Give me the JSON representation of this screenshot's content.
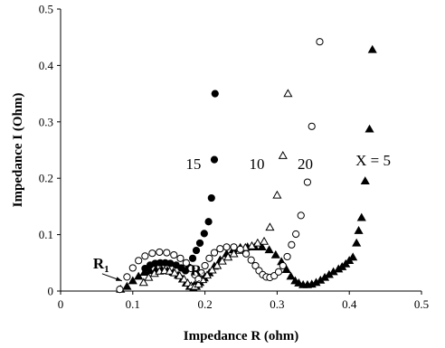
{
  "chart_data": {
    "type": "scatter",
    "xlabel": "Impedance R (ohm)",
    "ylabel": "Impedance I (Ohm)",
    "xlim": [
      0,
      0.5
    ],
    "ylim": [
      0,
      0.5
    ],
    "xticks": [
      "0",
      "0.1",
      "0.2",
      "0.3",
      "0.4",
      "0.5"
    ],
    "yticks": [
      "0",
      "0.1",
      "0.2",
      "0.3",
      "0.4",
      "0.5"
    ],
    "grid": false,
    "legend": "none",
    "series": [
      {
        "name": "5",
        "marker": "filled-triangle",
        "points": [
          [
            0.083,
            0.003
          ],
          [
            0.092,
            0.008
          ],
          [
            0.1,
            0.018
          ],
          [
            0.108,
            0.026
          ],
          [
            0.116,
            0.033
          ],
          [
            0.124,
            0.036
          ],
          [
            0.132,
            0.038
          ],
          [
            0.14,
            0.038
          ],
          [
            0.148,
            0.036
          ],
          [
            0.156,
            0.033
          ],
          [
            0.163,
            0.028
          ],
          [
            0.169,
            0.021
          ],
          [
            0.174,
            0.014
          ],
          [
            0.179,
            0.008
          ],
          [
            0.184,
            0.005
          ],
          [
            0.188,
            0.008
          ],
          [
            0.193,
            0.015
          ],
          [
            0.199,
            0.023
          ],
          [
            0.206,
            0.032
          ],
          [
            0.213,
            0.044
          ],
          [
            0.221,
            0.055
          ],
          [
            0.23,
            0.066
          ],
          [
            0.239,
            0.073
          ],
          [
            0.249,
            0.077
          ],
          [
            0.259,
            0.078
          ],
          [
            0.269,
            0.078
          ],
          [
            0.279,
            0.078
          ],
          [
            0.289,
            0.073
          ],
          [
            0.298,
            0.064
          ],
          [
            0.306,
            0.052
          ],
          [
            0.313,
            0.038
          ],
          [
            0.319,
            0.026
          ],
          [
            0.325,
            0.018
          ],
          [
            0.33,
            0.014
          ],
          [
            0.336,
            0.011
          ],
          [
            0.342,
            0.011
          ],
          [
            0.348,
            0.012
          ],
          [
            0.354,
            0.015
          ],
          [
            0.36,
            0.019
          ],
          [
            0.366,
            0.024
          ],
          [
            0.372,
            0.029
          ],
          [
            0.378,
            0.034
          ],
          [
            0.385,
            0.039
          ],
          [
            0.39,
            0.043
          ],
          [
            0.395,
            0.048
          ],
          [
            0.4,
            0.054
          ],
          [
            0.405,
            0.06
          ],
          [
            0.41,
            0.085
          ],
          [
            0.413,
            0.107
          ],
          [
            0.417,
            0.13
          ],
          [
            0.422,
            0.195
          ],
          [
            0.428,
            0.287
          ],
          [
            0.432,
            0.428
          ]
        ]
      },
      {
        "name": "10",
        "marker": "open-triangle",
        "points": [
          [
            0.115,
            0.015
          ],
          [
            0.122,
            0.024
          ],
          [
            0.13,
            0.031
          ],
          [
            0.137,
            0.035
          ],
          [
            0.144,
            0.036
          ],
          [
            0.151,
            0.035
          ],
          [
            0.158,
            0.032
          ],
          [
            0.165,
            0.027
          ],
          [
            0.171,
            0.021
          ],
          [
            0.176,
            0.014
          ],
          [
            0.181,
            0.009
          ],
          [
            0.186,
            0.008
          ],
          [
            0.191,
            0.012
          ],
          [
            0.197,
            0.02
          ],
          [
            0.203,
            0.028
          ],
          [
            0.21,
            0.037
          ],
          [
            0.217,
            0.045
          ],
          [
            0.224,
            0.053
          ],
          [
            0.232,
            0.06
          ],
          [
            0.24,
            0.066
          ],
          [
            0.248,
            0.072
          ],
          [
            0.256,
            0.077
          ],
          [
            0.265,
            0.08
          ],
          [
            0.273,
            0.085
          ],
          [
            0.282,
            0.088
          ],
          [
            0.29,
            0.113
          ],
          [
            0.3,
            0.17
          ],
          [
            0.308,
            0.24
          ],
          [
            0.315,
            0.35
          ]
        ]
      },
      {
        "name": "15",
        "marker": "filled-circle",
        "points": [
          [
            0.117,
            0.04
          ],
          [
            0.124,
            0.046
          ],
          [
            0.131,
            0.049
          ],
          [
            0.138,
            0.05
          ],
          [
            0.145,
            0.05
          ],
          [
            0.152,
            0.049
          ],
          [
            0.16,
            0.046
          ],
          [
            0.167,
            0.041
          ],
          [
            0.173,
            0.036
          ],
          [
            0.178,
            0.042
          ],
          [
            0.183,
            0.058
          ],
          [
            0.188,
            0.072
          ],
          [
            0.193,
            0.085
          ],
          [
            0.199,
            0.102
          ],
          [
            0.205,
            0.123
          ],
          [
            0.209,
            0.165
          ],
          [
            0.213,
            0.233
          ],
          [
            0.214,
            0.35
          ]
        ]
      },
      {
        "name": "20",
        "marker": "open-circle",
        "points": [
          [
            0.082,
            0.003
          ],
          [
            0.092,
            0.025
          ],
          [
            0.1,
            0.041
          ],
          [
            0.108,
            0.054
          ],
          [
            0.117,
            0.062
          ],
          [
            0.127,
            0.067
          ],
          [
            0.137,
            0.069
          ],
          [
            0.147,
            0.068
          ],
          [
            0.157,
            0.064
          ],
          [
            0.166,
            0.058
          ],
          [
            0.174,
            0.05
          ],
          [
            0.181,
            0.04
          ],
          [
            0.186,
            0.029
          ],
          [
            0.191,
            0.021
          ],
          [
            0.195,
            0.032
          ],
          [
            0.2,
            0.045
          ],
          [
            0.206,
            0.058
          ],
          [
            0.213,
            0.068
          ],
          [
            0.221,
            0.075
          ],
          [
            0.23,
            0.078
          ],
          [
            0.24,
            0.078
          ],
          [
            0.249,
            0.074
          ],
          [
            0.257,
            0.066
          ],
          [
            0.264,
            0.055
          ],
          [
            0.27,
            0.045
          ],
          [
            0.275,
            0.036
          ],
          [
            0.28,
            0.029
          ],
          [
            0.285,
            0.025
          ],
          [
            0.29,
            0.024
          ],
          [
            0.296,
            0.027
          ],
          [
            0.302,
            0.034
          ],
          [
            0.308,
            0.045
          ],
          [
            0.314,
            0.061
          ],
          [
            0.32,
            0.082
          ],
          [
            0.326,
            0.101
          ],
          [
            0.333,
            0.134
          ],
          [
            0.342,
            0.193
          ],
          [
            0.348,
            0.292
          ],
          [
            0.359,
            0.442
          ]
        ]
      }
    ],
    "annotations": [
      {
        "text": "15",
        "x": 0.184,
        "y": 0.226
      },
      {
        "text": "10",
        "x": 0.272,
        "y": 0.226
      },
      {
        "text": "20",
        "x": 0.339,
        "y": 0.226
      },
      {
        "text": "X = 5",
        "x": 0.433,
        "y": 0.232
      },
      {
        "text": "R",
        "sub": "1",
        "x": 0.05,
        "y": 0.05,
        "arrow_to": [
          0.085,
          0.018
        ]
      },
      {
        "text": "R",
        "sub": "2",
        "x": 0.185,
        "y": 0.038,
        "arrow_to": [
          0.18,
          0.01
        ]
      }
    ]
  }
}
